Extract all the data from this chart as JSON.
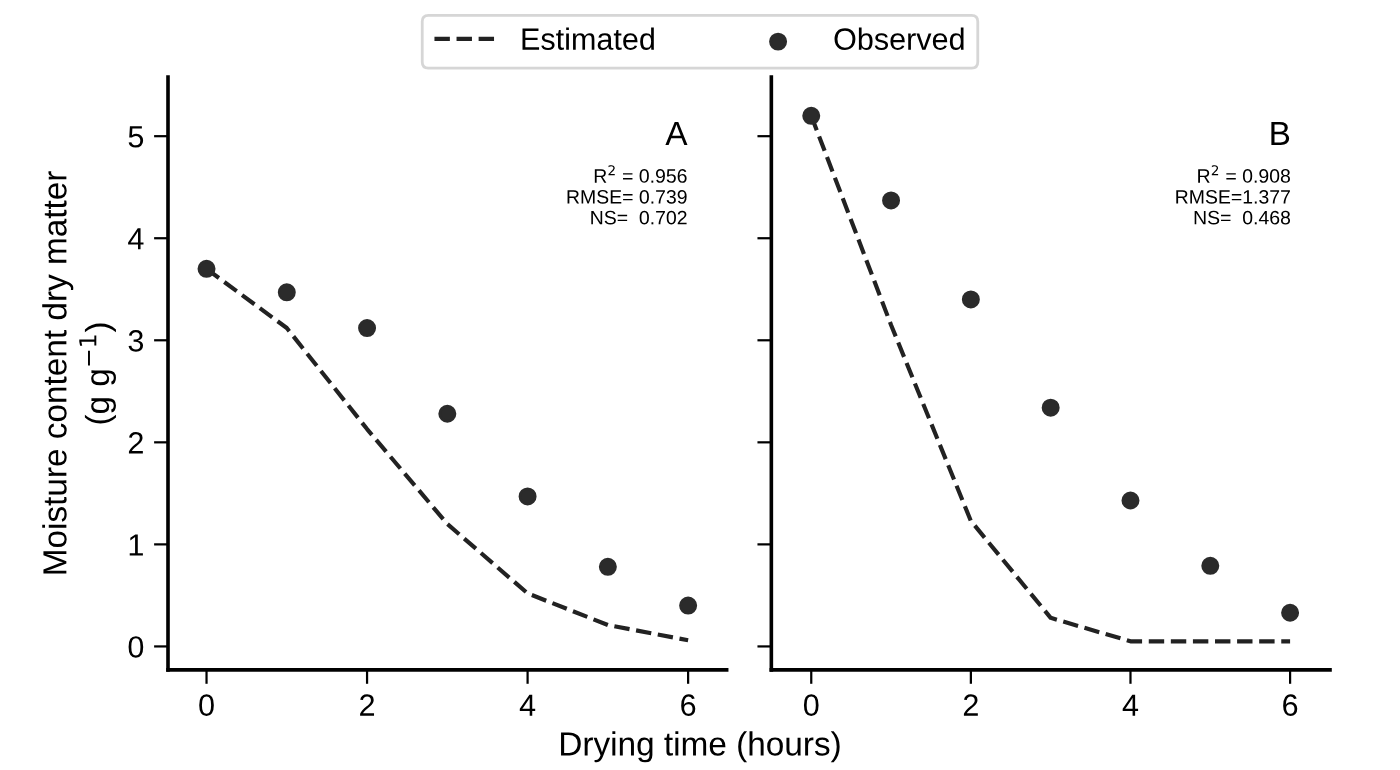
{
  "chart_data": [
    {
      "type": "line",
      "xlabel": "Drying time (hours)",
      "ylabel": "Moisture content dry matter\n(g g$^{−1}$)",
      "legend": "top",
      "x": [
        0,
        1,
        2,
        3,
        4,
        5,
        6
      ],
      "xlim": [
        -0.48,
        6.48
      ],
      "xticks": [
        0,
        2,
        4,
        6
      ],
      "ylim": [
        -0.23,
        5.58
      ],
      "yticks": [
        0,
        1,
        2,
        3,
        4,
        5
      ],
      "annotations": [
        "A",
        "R$^{2}$ = 0.956",
        "RMSE= 0.739",
        "NS=  0.702"
      ],
      "series": [
        {
          "name": "Estimated",
          "line_style": "dashed",
          "marker": "none",
          "color": "#222222",
          "values": [
            3.7,
            3.12,
            2.13,
            1.2,
            0.52,
            0.21,
            0.06
          ]
        },
        {
          "name": "Observed",
          "type": "scatter",
          "marker": "circle",
          "color": "#2b2b2b",
          "values": [
            3.7,
            3.47,
            3.12,
            2.28,
            1.47,
            0.78,
            0.4
          ]
        }
      ]
    },
    {
      "type": "line",
      "tick_labels": "x",
      "x": [
        0,
        1,
        2,
        3,
        4,
        5,
        6
      ],
      "xlim": [
        -0.5,
        6.5
      ],
      "xticks": [
        0,
        2,
        4,
        6
      ],
      "ylim": [
        -0.23,
        5.58
      ],
      "yticks": [
        0,
        1,
        2,
        3,
        4,
        5
      ],
      "annotations": [
        "B",
        "R$^{2}$ = 0.908",
        "RMSE=1.377",
        "NS=  0.468"
      ],
      "series": [
        {
          "line_style": "dashed",
          "marker": "none",
          "color": "#222222",
          "values": [
            5.2,
            3.15,
            1.23,
            0.28,
            0.05,
            0.05,
            0.05
          ]
        },
        {
          "type": "scatter",
          "marker": "circle",
          "color": "#2b2b2b",
          "values": [
            5.2,
            4.37,
            3.4,
            2.34,
            1.43,
            0.79,
            0.33
          ]
        }
      ]
    }
  ]
}
